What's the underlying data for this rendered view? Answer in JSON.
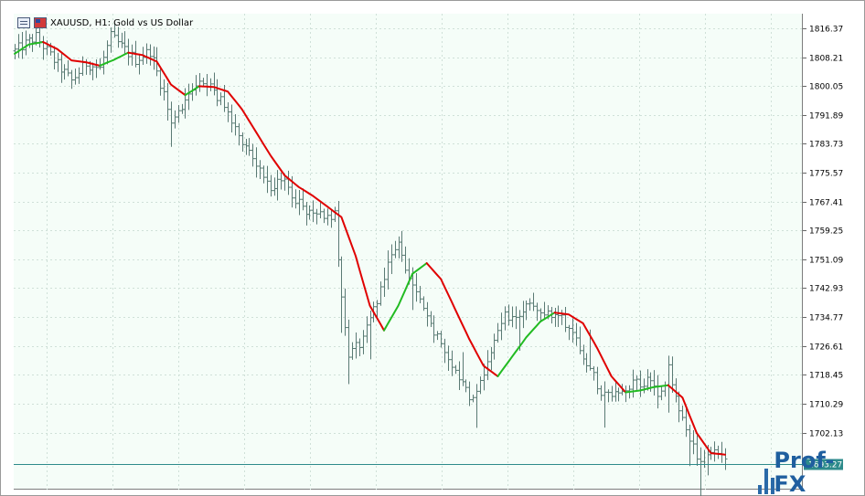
{
  "window": {
    "title": "XAUUSD, H1:  Gold vs US Dollar",
    "icons": [
      "table-icon",
      "flag-icon"
    ]
  },
  "price_tag": {
    "label": "1693.27",
    "color": "#2e8b8b"
  },
  "watermark": {
    "text": "Prof-FX",
    "color": "#1f5f9f"
  },
  "colors": {
    "background": "#f5fdf8",
    "grid": "#cfe0d8",
    "bars": "#5a7a74",
    "ma_down": "#e00000",
    "ma_up": "#22bb22",
    "price_line": "#2e8b8b"
  },
  "chart_data": {
    "type": "line",
    "subtype": "ohlc-bars-with-moving-average",
    "symbol": "XAUUSD",
    "timeframe": "H1",
    "title": "XAUUSD, H1:  Gold vs US Dollar",
    "y_axis_ticks": [
      "1816.37",
      "1808.21",
      "1800.05",
      "1791.89",
      "1783.73",
      "1775.57",
      "1767.41",
      "1759.25",
      "1751.09",
      "1742.93",
      "1734.77",
      "1726.61",
      "1718.45",
      "1710.29",
      "1702.13"
    ],
    "ylim": [
      1686.0,
      1820.5
    ],
    "grid": true,
    "current_price": 1693.27,
    "moving_average": [
      {
        "i": 0,
        "v": 1809.2
      },
      {
        "i": 4,
        "v": 1811.8
      },
      {
        "i": 8,
        "v": 1812.5
      },
      {
        "i": 12,
        "v": 1810.5
      },
      {
        "i": 16,
        "v": 1807.3
      },
      {
        "i": 20,
        "v": 1806.8
      },
      {
        "i": 24,
        "v": 1805.8
      },
      {
        "i": 28,
        "v": 1807.5
      },
      {
        "i": 32,
        "v": 1809.5
      },
      {
        "i": 36,
        "v": 1808.8
      },
      {
        "i": 40,
        "v": 1807.0
      },
      {
        "i": 44,
        "v": 1800.5
      },
      {
        "i": 48,
        "v": 1797.5
      },
      {
        "i": 52,
        "v": 1800.0
      },
      {
        "i": 56,
        "v": 1799.8
      },
      {
        "i": 60,
        "v": 1798.5
      },
      {
        "i": 64,
        "v": 1793.5
      },
      {
        "i": 68,
        "v": 1787.0
      },
      {
        "i": 72,
        "v": 1780.5
      },
      {
        "i": 76,
        "v": 1774.8
      },
      {
        "i": 80,
        "v": 1771.5
      },
      {
        "i": 84,
        "v": 1769.0
      },
      {
        "i": 88,
        "v": 1766.0
      },
      {
        "i": 92,
        "v": 1763.0
      },
      {
        "i": 96,
        "v": 1752.0
      },
      {
        "i": 100,
        "v": 1738.0
      },
      {
        "i": 104,
        "v": 1731.0
      },
      {
        "i": 108,
        "v": 1738.0
      },
      {
        "i": 112,
        "v": 1747.0
      },
      {
        "i": 116,
        "v": 1750.0
      },
      {
        "i": 120,
        "v": 1745.5
      },
      {
        "i": 124,
        "v": 1737.0
      },
      {
        "i": 128,
        "v": 1728.5
      },
      {
        "i": 132,
        "v": 1721.0
      },
      {
        "i": 136,
        "v": 1718.0
      },
      {
        "i": 140,
        "v": 1723.5
      },
      {
        "i": 144,
        "v": 1729.0
      },
      {
        "i": 148,
        "v": 1733.5
      },
      {
        "i": 152,
        "v": 1736.0
      },
      {
        "i": 156,
        "v": 1735.5
      },
      {
        "i": 160,
        "v": 1733.0
      },
      {
        "i": 164,
        "v": 1726.0
      },
      {
        "i": 168,
        "v": 1718.0
      },
      {
        "i": 172,
        "v": 1713.5
      },
      {
        "i": 176,
        "v": 1714.0
      },
      {
        "i": 180,
        "v": 1715.0
      },
      {
        "i": 184,
        "v": 1715.5
      },
      {
        "i": 188,
        "v": 1712.0
      },
      {
        "i": 192,
        "v": 1702.0
      },
      {
        "i": 196,
        "v": 1696.3
      },
      {
        "i": 200,
        "v": 1695.9
      }
    ],
    "ma_color_segments": [
      {
        "from": 0,
        "to": 8,
        "color": "up"
      },
      {
        "from": 8,
        "to": 24,
        "color": "down"
      },
      {
        "from": 24,
        "to": 32,
        "color": "up"
      },
      {
        "from": 32,
        "to": 48,
        "color": "down"
      },
      {
        "from": 48,
        "to": 52,
        "color": "up"
      },
      {
        "from": 52,
        "to": 104,
        "color": "down"
      },
      {
        "from": 104,
        "to": 116,
        "color": "up"
      },
      {
        "from": 116,
        "to": 136,
        "color": "down"
      },
      {
        "from": 136,
        "to": 152,
        "color": "up"
      },
      {
        "from": 152,
        "to": 172,
        "color": "down"
      },
      {
        "from": 172,
        "to": 184,
        "color": "up"
      },
      {
        "from": 184,
        "to": 200,
        "color": "down"
      }
    ],
    "price_path": [
      {
        "i": 0,
        "v": 1810.0
      },
      {
        "i": 6,
        "v": 1814.0
      },
      {
        "i": 12,
        "v": 1806.0
      },
      {
        "i": 16,
        "v": 1801.5
      },
      {
        "i": 20,
        "v": 1806.5
      },
      {
        "i": 24,
        "v": 1805.0
      },
      {
        "i": 27,
        "v": 1814.0
      },
      {
        "i": 34,
        "v": 1807.5
      },
      {
        "i": 38,
        "v": 1810.0
      },
      {
        "i": 42,
        "v": 1798.0
      },
      {
        "i": 44,
        "v": 1789.0
      },
      {
        "i": 48,
        "v": 1796.0
      },
      {
        "i": 52,
        "v": 1803.0
      },
      {
        "i": 56,
        "v": 1799.0
      },
      {
        "i": 60,
        "v": 1792.0
      },
      {
        "i": 64,
        "v": 1785.0
      },
      {
        "i": 68,
        "v": 1778.0
      },
      {
        "i": 72,
        "v": 1772.0
      },
      {
        "i": 76,
        "v": 1772.5
      },
      {
        "i": 80,
        "v": 1767.0
      },
      {
        "i": 84,
        "v": 1763.0
      },
      {
        "i": 88,
        "v": 1764.0
      },
      {
        "i": 90,
        "v": 1763.5
      },
      {
        "i": 92,
        "v": 1740.0
      },
      {
        "i": 94,
        "v": 1724.0
      },
      {
        "i": 98,
        "v": 1728.0
      },
      {
        "i": 102,
        "v": 1740.0
      },
      {
        "i": 105,
        "v": 1750.0
      },
      {
        "i": 108,
        "v": 1755.0
      },
      {
        "i": 112,
        "v": 1744.0
      },
      {
        "i": 116,
        "v": 1734.0
      },
      {
        "i": 120,
        "v": 1728.0
      },
      {
        "i": 124,
        "v": 1720.0
      },
      {
        "i": 128,
        "v": 1712.0
      },
      {
        "i": 130,
        "v": 1712.5
      },
      {
        "i": 134,
        "v": 1726.0
      },
      {
        "i": 138,
        "v": 1735.0
      },
      {
        "i": 142,
        "v": 1735.0
      },
      {
        "i": 146,
        "v": 1739.0
      },
      {
        "i": 150,
        "v": 1735.0
      },
      {
        "i": 154,
        "v": 1734.5
      },
      {
        "i": 158,
        "v": 1729.0
      },
      {
        "i": 162,
        "v": 1720.0
      },
      {
        "i": 166,
        "v": 1712.0
      },
      {
        "i": 170,
        "v": 1713.0
      },
      {
        "i": 174,
        "v": 1716.0
      },
      {
        "i": 178,
        "v": 1716.5
      },
      {
        "i": 182,
        "v": 1713.0
      },
      {
        "i": 184,
        "v": 1720.0
      },
      {
        "i": 187,
        "v": 1709.0
      },
      {
        "i": 190,
        "v": 1699.0
      },
      {
        "i": 193,
        "v": 1694.0
      },
      {
        "i": 196,
        "v": 1696.0
      },
      {
        "i": 200,
        "v": 1695.0
      }
    ],
    "bar_count": 201
  }
}
